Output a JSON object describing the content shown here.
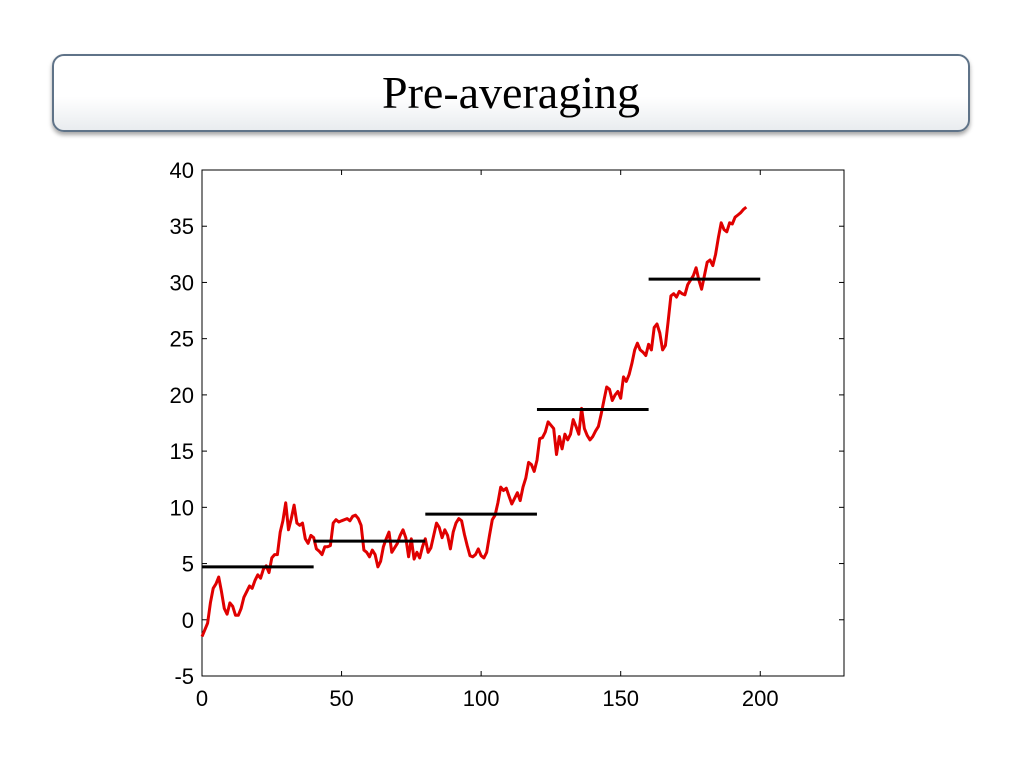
{
  "slide": {
    "title": "Pre-averaging"
  },
  "chart_data": {
    "type": "line",
    "title": "",
    "xlabel": "",
    "ylabel": "",
    "xlim": [
      0,
      230
    ],
    "ylim": [
      -5,
      40
    ],
    "x_ticks": [
      0,
      50,
      100,
      150,
      200
    ],
    "y_ticks": [
      -5,
      0,
      5,
      10,
      15,
      20,
      25,
      30,
      35,
      40
    ],
    "grid": false,
    "series": [
      {
        "color": "#e00000",
        "points": [
          [
            0,
            -1.5
          ],
          [
            2,
            -0.3
          ],
          [
            3,
            1.5
          ],
          [
            4,
            2.8
          ],
          [
            5,
            3.2
          ],
          [
            6,
            3.8
          ],
          [
            7,
            2.5
          ],
          [
            8,
            1.0
          ],
          [
            9,
            0.5
          ],
          [
            10,
            1.5
          ],
          [
            11,
            1.2
          ],
          [
            12,
            0.4
          ],
          [
            13,
            0.4
          ],
          [
            14,
            1.0
          ],
          [
            15,
            2.0
          ],
          [
            16,
            2.5
          ],
          [
            17,
            3.0
          ],
          [
            18,
            2.8
          ],
          [
            19,
            3.5
          ],
          [
            20,
            4.0
          ],
          [
            21,
            3.7
          ],
          [
            22,
            4.5
          ],
          [
            23,
            4.8
          ],
          [
            24,
            4.2
          ],
          [
            25,
            5.5
          ],
          [
            26,
            5.8
          ],
          [
            27,
            5.8
          ],
          [
            28,
            7.8
          ],
          [
            29,
            8.8
          ],
          [
            30,
            10.4
          ],
          [
            31,
            8.0
          ],
          [
            32,
            9.0
          ],
          [
            33,
            10.2
          ],
          [
            34,
            8.6
          ],
          [
            35,
            8.4
          ],
          [
            36,
            8.6
          ],
          [
            37,
            7.2
          ],
          [
            38,
            6.8
          ],
          [
            39,
            7.5
          ],
          [
            40,
            7.3
          ],
          [
            41,
            6.3
          ],
          [
            42,
            6.1
          ],
          [
            43,
            5.8
          ],
          [
            44,
            6.5
          ],
          [
            45,
            6.5
          ],
          [
            46,
            6.6
          ],
          [
            47,
            8.6
          ],
          [
            48,
            8.9
          ],
          [
            49,
            8.7
          ],
          [
            50,
            8.8
          ],
          [
            52,
            9.0
          ],
          [
            53,
            8.8
          ],
          [
            54,
            9.2
          ],
          [
            55,
            9.3
          ],
          [
            56,
            9.0
          ],
          [
            57,
            8.4
          ],
          [
            58,
            6.2
          ],
          [
            59,
            6.0
          ],
          [
            60,
            5.6
          ],
          [
            61,
            6.2
          ],
          [
            62,
            5.8
          ],
          [
            63,
            4.7
          ],
          [
            64,
            5.2
          ],
          [
            65,
            6.5
          ],
          [
            66,
            7.2
          ],
          [
            67,
            7.8
          ],
          [
            68,
            6.0
          ],
          [
            69,
            6.4
          ],
          [
            70,
            6.8
          ],
          [
            71,
            7.5
          ],
          [
            72,
            8.0
          ],
          [
            73,
            7.3
          ],
          [
            74,
            5.6
          ],
          [
            75,
            7.2
          ],
          [
            76,
            5.4
          ],
          [
            77,
            6.0
          ],
          [
            78,
            5.5
          ],
          [
            79,
            6.5
          ],
          [
            80,
            7.2
          ],
          [
            81,
            6.0
          ],
          [
            82,
            6.4
          ],
          [
            83,
            7.5
          ],
          [
            84,
            8.6
          ],
          [
            85,
            8.2
          ],
          [
            86,
            7.3
          ],
          [
            87,
            8.0
          ],
          [
            88,
            7.5
          ],
          [
            89,
            6.3
          ],
          [
            90,
            7.8
          ],
          [
            91,
            8.6
          ],
          [
            92,
            9.0
          ],
          [
            93,
            8.8
          ],
          [
            94,
            7.6
          ],
          [
            95,
            6.6
          ],
          [
            96,
            5.7
          ],
          [
            97,
            5.6
          ],
          [
            98,
            5.8
          ],
          [
            99,
            6.3
          ],
          [
            100,
            5.7
          ],
          [
            101,
            5.5
          ],
          [
            102,
            6.0
          ],
          [
            103,
            7.5
          ],
          [
            104,
            8.9
          ],
          [
            105,
            9.3
          ],
          [
            106,
            10.4
          ],
          [
            107,
            11.8
          ],
          [
            108,
            11.5
          ],
          [
            109,
            11.7
          ],
          [
            110,
            11.0
          ],
          [
            111,
            10.3
          ],
          [
            112,
            10.8
          ],
          [
            113,
            11.3
          ],
          [
            114,
            10.6
          ],
          [
            115,
            11.8
          ],
          [
            116,
            12.6
          ],
          [
            117,
            14.0
          ],
          [
            118,
            13.8
          ],
          [
            119,
            13.2
          ],
          [
            120,
            14.2
          ],
          [
            121,
            16.1
          ],
          [
            122,
            16.2
          ],
          [
            123,
            16.7
          ],
          [
            124,
            17.6
          ],
          [
            125,
            17.3
          ],
          [
            126,
            17.0
          ],
          [
            127,
            14.7
          ],
          [
            128,
            16.3
          ],
          [
            129,
            15.2
          ],
          [
            130,
            16.5
          ],
          [
            131,
            16.0
          ],
          [
            132,
            16.5
          ],
          [
            133,
            17.8
          ],
          [
            134,
            17.2
          ],
          [
            135,
            16.5
          ],
          [
            136,
            18.8
          ],
          [
            137,
            17.0
          ],
          [
            138,
            16.4
          ],
          [
            139,
            16.0
          ],
          [
            140,
            16.3
          ],
          [
            141,
            16.8
          ],
          [
            142,
            17.2
          ],
          [
            143,
            18.3
          ],
          [
            144,
            19.5
          ],
          [
            145,
            20.7
          ],
          [
            146,
            20.5
          ],
          [
            147,
            19.5
          ],
          [
            148,
            20.0
          ],
          [
            149,
            20.3
          ],
          [
            150,
            19.7
          ],
          [
            151,
            21.6
          ],
          [
            152,
            21.2
          ],
          [
            153,
            21.8
          ],
          [
            154,
            22.8
          ],
          [
            155,
            24.0
          ],
          [
            156,
            24.6
          ],
          [
            157,
            24.0
          ],
          [
            158,
            23.8
          ],
          [
            159,
            23.5
          ],
          [
            160,
            24.5
          ],
          [
            161,
            24.0
          ],
          [
            162,
            26.0
          ],
          [
            163,
            26.3
          ],
          [
            164,
            25.5
          ],
          [
            165,
            24.0
          ],
          [
            166,
            24.4
          ],
          [
            167,
            26.5
          ],
          [
            168,
            28.8
          ],
          [
            169,
            29.0
          ],
          [
            170,
            28.7
          ],
          [
            171,
            29.2
          ],
          [
            172,
            29.0
          ],
          [
            173,
            28.9
          ],
          [
            174,
            29.8
          ],
          [
            175,
            30.2
          ],
          [
            176,
            30.6
          ],
          [
            177,
            31.3
          ],
          [
            178,
            30.2
          ],
          [
            179,
            29.4
          ],
          [
            180,
            30.6
          ],
          [
            181,
            31.8
          ],
          [
            182,
            32.0
          ],
          [
            183,
            31.5
          ],
          [
            184,
            32.5
          ],
          [
            185,
            34.0
          ],
          [
            186,
            35.3
          ],
          [
            187,
            34.7
          ],
          [
            188,
            34.5
          ],
          [
            189,
            35.3
          ],
          [
            190,
            35.2
          ],
          [
            191,
            35.8
          ],
          [
            192,
            36.0
          ],
          [
            193,
            36.2
          ],
          [
            194,
            36.5
          ],
          [
            195,
            36.7
          ]
        ]
      }
    ],
    "averages": [
      {
        "x": [
          0,
          40
        ],
        "y": 4.7
      },
      {
        "x": [
          40,
          80
        ],
        "y": 7.0
      },
      {
        "x": [
          80,
          120
        ],
        "y": 9.4
      },
      {
        "x": [
          120,
          160
        ],
        "y": 18.7
      },
      {
        "x": [
          160,
          200
        ],
        "y": 30.3
      }
    ],
    "average_color": "#000000"
  }
}
